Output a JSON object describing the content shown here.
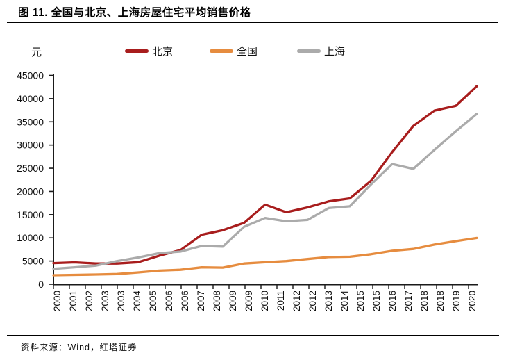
{
  "header": {
    "title": "图 11. 全国与北京、上海房屋住宅平均销售价格"
  },
  "footer": {
    "source": "资料来源：Wind，红塔证券"
  },
  "chart_data": {
    "type": "line",
    "title": "图 11. 全国与北京、上海房屋住宅平均销售价格",
    "unit_label": "元",
    "categories": [
      2000,
      2001,
      2002,
      2003,
      2004,
      2005,
      2006,
      2007,
      2008,
      2009,
      2010,
      2011,
      2012,
      2013,
      2014,
      2015,
      2016,
      2017,
      2018,
      2019,
      2020
    ],
    "series": [
      {
        "name": "北京",
        "color": "#A81D1D",
        "values": [
          4557,
          4716,
          4467,
          4456,
          4747,
          6162,
          7375,
          10661,
          11648,
          13224,
          17151,
          15518,
          16553,
          17854,
          18499,
          22300,
          28489,
          34117,
          37420,
          38433,
          42684
        ]
      },
      {
        "name": "全国",
        "color": "#E68C3F",
        "values": [
          1948,
          2017,
          2092,
          2197,
          2549,
          2937,
          3119,
          3645,
          3576,
          4459,
          4725,
          4993,
          5430,
          5850,
          5933,
          6473,
          7203,
          7614,
          8544,
          9287,
          9980
        ]
      },
      {
        "name": "上海",
        "color": "#ABABAB",
        "values": [
          3326,
          3658,
          4007,
          4989,
          5761,
          6698,
          7039,
          8253,
          8115,
          12364,
          14290,
          13566,
          13870,
          16420,
          16787,
          21501,
          25910,
          24866,
          28981,
          32926,
          36741
        ]
      }
    ],
    "ylim": [
      0,
      45000
    ],
    "ytick_labels": [
      "0",
      "5000",
      "10000",
      "15000",
      "20000",
      "25000",
      "30000",
      "35000",
      "40000",
      "45000"
    ],
    "xtick_labels": [
      "2000",
      "2001",
      "2002",
      "2003",
      "2003",
      "2004",
      "2005",
      "2006",
      "2006",
      "2007",
      "2008",
      "2009",
      "2009",
      "2010",
      "2011",
      "2012",
      "2012",
      "2013",
      "2014",
      "2015",
      "2015",
      "2016",
      "2017",
      "2018",
      "2018",
      "2019",
      "2020"
    ],
    "legend_position": "top",
    "grid": false,
    "axis_color": "#1a1a1a"
  }
}
